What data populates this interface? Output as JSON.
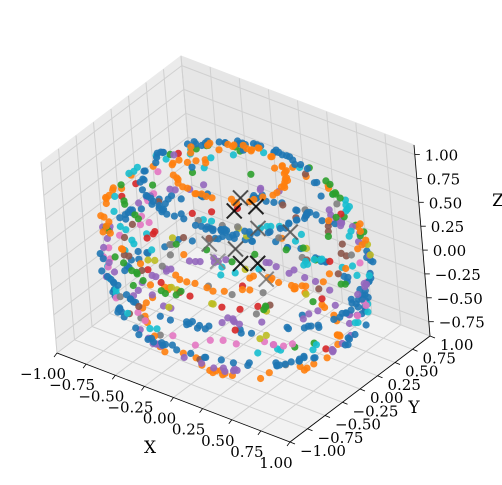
{
  "chart_data": {
    "type": "scatter3d",
    "title": "",
    "xlabel": "X",
    "ylabel": "Y",
    "zlabel": "Z",
    "xlim": [
      -1.0,
      1.0
    ],
    "ylim": [
      -1.0,
      1.0
    ],
    "zlim": [
      -0.9,
      1.1
    ],
    "x_ticks": [
      "−1.00",
      "−0.75",
      "−0.50",
      "−0.25",
      "0.00",
      "0.25",
      "0.50",
      "0.75",
      "1.00"
    ],
    "y_ticks": [
      "−1.00",
      "−0.75",
      "−0.50",
      "−0.25",
      "0.00",
      "0.25",
      "0.50",
      "0.75",
      "1.00"
    ],
    "z_ticks": [
      "−0.75",
      "−0.50",
      "−0.25",
      "0.00",
      "0.25",
      "0.50",
      "0.75",
      "1.00"
    ],
    "grid": true,
    "legend": "none",
    "point_colors": [
      "#1f77b4",
      "#ff7f0e",
      "#2ca02c",
      "#d62728",
      "#9467bd",
      "#8c564b",
      "#e377c2",
      "#7f7f7f",
      "#bcbd22",
      "#17becf"
    ],
    "ring_series": [
      {
        "color": "#1f77b4",
        "rings": [
          {
            "z": 0.75,
            "r": 0.65
          },
          {
            "z": -0.05,
            "r": 1.0
          },
          {
            "z": -0.45,
            "r": 0.92
          }
        ],
        "count": 260
      },
      {
        "color": "#ff7f0e",
        "rings": [
          {
            "z": 0.9,
            "r": 0.42
          },
          {
            "z": 0.35,
            "r": 0.95
          },
          {
            "z": -0.7,
            "r": 0.72
          }
        ],
        "count": 140
      },
      {
        "color": "#9467bd",
        "rings": [
          {
            "z": 0.05,
            "r": 0.98
          },
          {
            "z": -0.6,
            "r": 0.8
          }
        ],
        "count": 90
      },
      {
        "color": "#2ca02c",
        "rings": [
          {
            "z": 0.6,
            "r": 0.8
          },
          {
            "z": 0.2,
            "r": 0.96
          }
        ],
        "count": 50
      },
      {
        "color": "#17becf",
        "rings": [
          {
            "z": 0.5,
            "r": 0.87
          },
          {
            "z": -0.3,
            "r": 0.95
          }
        ],
        "count": 60
      },
      {
        "color": "#e377c2",
        "rings": [
          {
            "z": -0.2,
            "r": 0.97
          }
        ],
        "count": 20
      },
      {
        "color": "#d62728",
        "rings": [
          {
            "z": 0.0,
            "r": 0.7
          }
        ],
        "count": 14
      },
      {
        "color": "#8c564b",
        "rings": [
          {
            "z": 0.1,
            "r": 0.8
          }
        ],
        "count": 14
      },
      {
        "color": "#bcbd22",
        "rings": [
          {
            "z": -0.1,
            "r": 0.6
          }
        ],
        "count": 10
      },
      {
        "color": "#7f7f7f",
        "rings": [
          {
            "z": 0.0,
            "r": 0.5
          }
        ],
        "count": 10
      }
    ],
    "centroids": [
      {
        "x": 0.05,
        "y": -0.05,
        "z": 0.55,
        "color": "#000000"
      },
      {
        "x": 0.18,
        "y": 0.05,
        "z": 0.6,
        "color": "#000000"
      },
      {
        "x": -0.05,
        "y": 0.2,
        "z": 0.5,
        "color": "#333333"
      },
      {
        "x": 0.1,
        "y": -0.1,
        "z": 0.05,
        "color": "#000000"
      },
      {
        "x": 0.0,
        "y": 0.0,
        "z": 0.1,
        "color": "#444444"
      },
      {
        "x": 0.12,
        "y": 0.1,
        "z": -0.05,
        "color": "#000000"
      },
      {
        "x": -0.15,
        "y": -0.12,
        "z": 0.15,
        "color": "#666666"
      },
      {
        "x": 0.25,
        "y": 0.0,
        "z": -0.1,
        "color": "#777777"
      },
      {
        "x": 0.05,
        "y": 0.25,
        "z": 0.2,
        "color": "#555555"
      },
      {
        "x": 0.3,
        "y": 0.3,
        "z": 0.25,
        "color": "#555555"
      },
      {
        "x": -0.2,
        "y": 0.05,
        "z": -0.15,
        "color": "#888888"
      }
    ]
  }
}
